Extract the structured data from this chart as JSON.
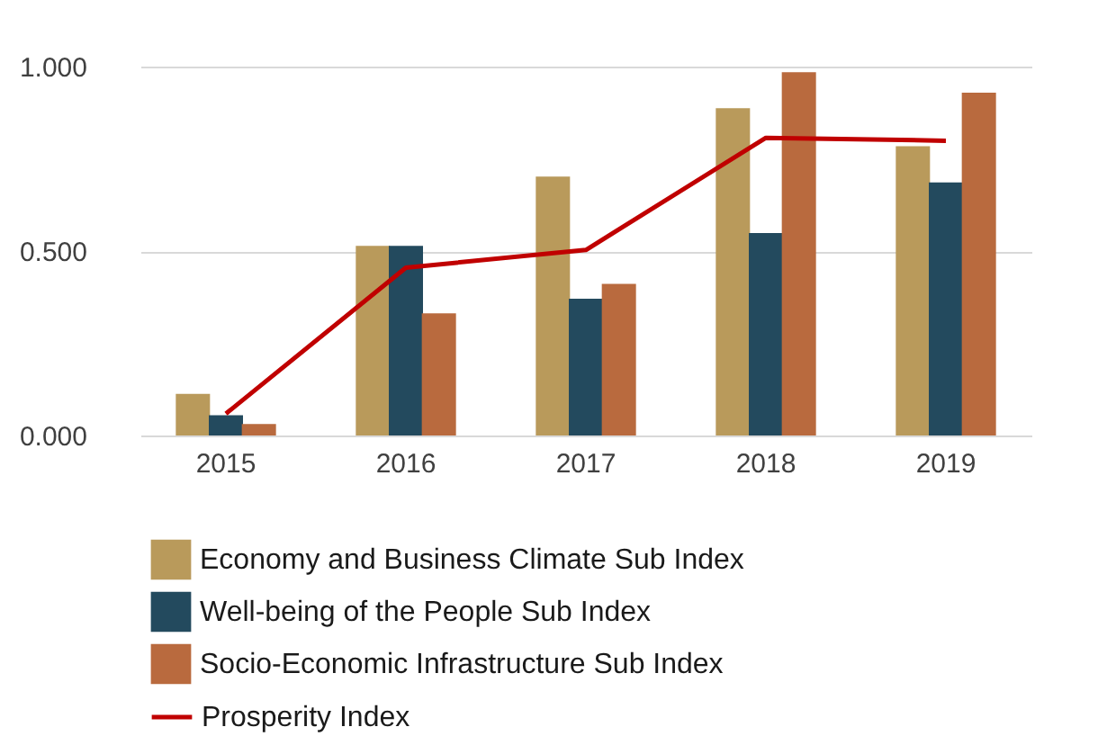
{
  "chart_data": {
    "type": "bar",
    "categories": [
      "2015",
      "2016",
      "2017",
      "2018",
      "2019"
    ],
    "series": [
      {
        "name": "Economy and Business Climate Sub Index",
        "color": "#b99a5b",
        "values": [
          0.113,
          0.514,
          0.702,
          0.887,
          0.784
        ]
      },
      {
        "name": "Well-being of the People Sub Index",
        "color": "#234a5e",
        "values": [
          0.055,
          0.514,
          0.371,
          0.549,
          0.686
        ]
      },
      {
        "name": "Socio-Economic Infrastructure Sub Index",
        "color": "#b96a3e",
        "values": [
          0.031,
          0.331,
          0.411,
          0.985,
          0.929
        ]
      },
      {
        "name": "Prosperity Index",
        "color": "#c00000",
        "type": "line",
        "values": [
          0.059,
          0.455,
          0.503,
          0.807,
          0.799
        ]
      }
    ],
    "ylim": [
      0,
      1
    ],
    "yticks": [
      {
        "value": 0,
        "label": "0.000"
      },
      {
        "value": 0.5,
        "label": "0.500"
      },
      {
        "value": 1,
        "label": "1.000"
      }
    ],
    "grid": "y",
    "legend": "bottom",
    "marker": "none",
    "line_style": "solid"
  }
}
